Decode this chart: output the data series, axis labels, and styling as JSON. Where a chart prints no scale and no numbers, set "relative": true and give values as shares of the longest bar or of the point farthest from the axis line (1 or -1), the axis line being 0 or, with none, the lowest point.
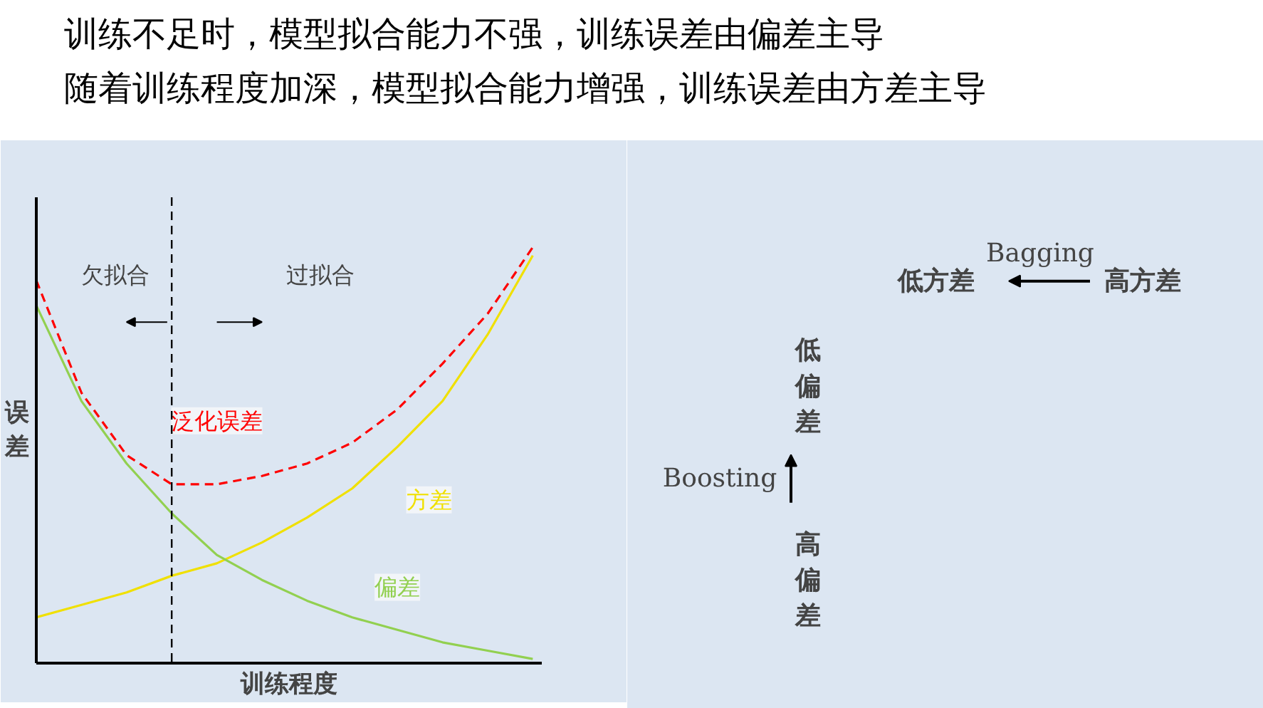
{
  "chart_data": {
    "type": "line",
    "title": "训练不足时，模型拟合能力不强，训练误差由偏差主导",
    "subtitle": "随着训练程度加深，模型拟合能力增强，训练误差由方差主导",
    "xlabel": "训练程度",
    "ylabel": "误差",
    "relative": true,
    "marker": "none",
    "categories": [
      null,
      null,
      null,
      null,
      null,
      null,
      null,
      null,
      null,
      null,
      null,
      null
    ],
    "series": [
      {
        "name": "泛化误差",
        "color": "#ff0000",
        "line_style": "dashed",
        "values": [
          0.92,
          0.65,
          0.5,
          0.43,
          0.43,
          0.45,
          0.48,
          0.53,
          0.61,
          0.72,
          0.84,
          1.0
        ]
      },
      {
        "name": "方差",
        "color": "#f0e000",
        "line_style": "solid",
        "values": [
          0.11,
          0.14,
          0.17,
          0.21,
          0.24,
          0.29,
          0.35,
          0.42,
          0.52,
          0.63,
          0.79,
          0.98
        ]
      },
      {
        "name": "偏差",
        "color": "#92d050",
        "line_style": "solid",
        "values": [
          0.86,
          0.63,
          0.48,
          0.36,
          0.26,
          0.2,
          0.15,
          0.11,
          0.08,
          0.05,
          0.03,
          0.01
        ]
      }
    ],
    "annotations": [
      "欠拟合",
      "过拟合",
      "Bagging",
      "低方差",
      "高方差",
      "Boosting",
      "低偏差",
      "高偏差"
    ]
  }
}
